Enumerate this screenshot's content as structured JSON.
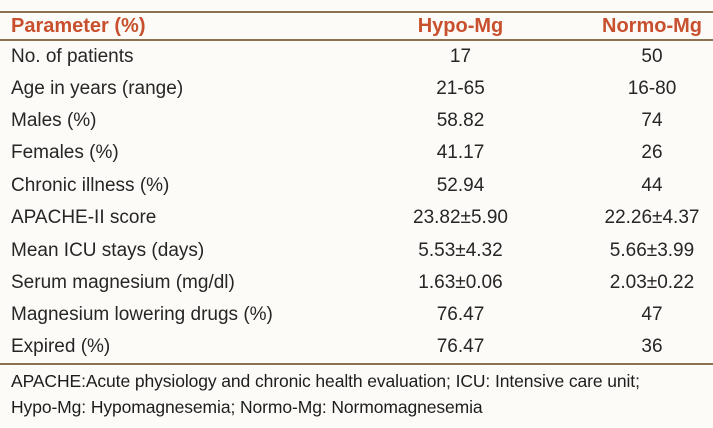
{
  "table": {
    "columns": [
      "Parameter (%)",
      "Hypo-Mg",
      "Normo-Mg"
    ],
    "rows": [
      {
        "label": "No. of patients",
        "hypo": "17",
        "normo": "50"
      },
      {
        "label": "Age in years (range)",
        "hypo": "21-65",
        "normo": "16-80"
      },
      {
        "label": "Males (%)",
        "hypo": "58.82",
        "normo": "74"
      },
      {
        "label": "Females (%)",
        "hypo": "41.17",
        "normo": "26"
      },
      {
        "label": "Chronic illness (%)",
        "hypo": "52.94",
        "normo": "44"
      },
      {
        "label": "APACHE-II score",
        "hypo": "23.82±5.90",
        "normo": "22.26±4.37"
      },
      {
        "label": "Mean ICU stays (days)",
        "hypo": "5.53±4.32",
        "normo": "5.66±3.99"
      },
      {
        "label": "Serum magnesium (mg/dl)",
        "hypo": "1.63±0.06",
        "normo": "2.03±0.22"
      },
      {
        "label": "Magnesium lowering drugs (%)",
        "hypo": "76.47",
        "normo": "47"
      },
      {
        "label": "Expired (%)",
        "hypo": "76.47",
        "normo": "36"
      }
    ],
    "footnote_lines": [
      "APACHE:Acute physiology and chronic health evaluation; ICU: Intensive care unit;",
      "Hypo-Mg: Hypomagnesemia; Normo-Mg: Normomagnesemia"
    ]
  },
  "colors": {
    "accent": "#c8502e",
    "rule": "#8e7151",
    "text": "#262626",
    "background": "#fcfbf7"
  },
  "chart_data": {
    "type": "table",
    "title": "",
    "categories": [
      "No. of patients",
      "Age in years (range)",
      "Males (%)",
      "Females (%)",
      "Chronic illness (%)",
      "APACHE-II score",
      "Mean ICU stays (days)",
      "Serum magnesium (mg/dl)",
      "Magnesium lowering drugs (%)",
      "Expired (%)"
    ],
    "series": [
      {
        "name": "Hypo-Mg",
        "values": [
          "17",
          "21-65",
          "58.82",
          "41.17",
          "52.94",
          "23.82±5.90",
          "5.53±4.32",
          "1.63±0.06",
          "76.47",
          "76.47"
        ]
      },
      {
        "name": "Normo-Mg",
        "values": [
          "50",
          "16-80",
          "74",
          "26",
          "44",
          "22.26±4.37",
          "5.66±3.99",
          "2.03±0.22",
          "47",
          "36"
        ]
      }
    ]
  }
}
